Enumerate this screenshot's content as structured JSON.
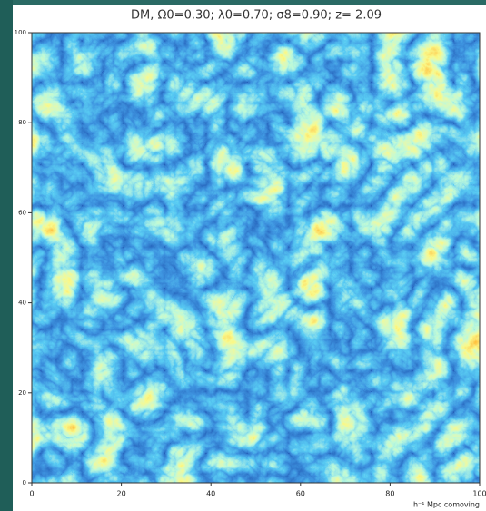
{
  "chart_data": {
    "type": "image",
    "title": "DM, Ω0=0.30; λ0=0.70; σ8=0.90; z= 2.09",
    "xlabel": "h⁻¹ Mpc comoving",
    "xlim": [
      0,
      100
    ],
    "ylim": [
      0,
      100
    ],
    "xticks": [
      0,
      20,
      40,
      60,
      80,
      100
    ],
    "yticks": [
      0,
      20,
      40,
      60,
      80,
      100
    ]
  }
}
